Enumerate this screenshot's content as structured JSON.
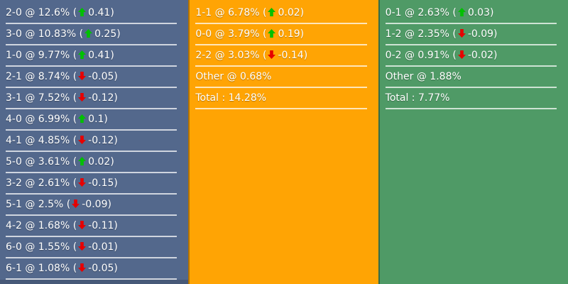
{
  "board": {
    "name": "correct-score-probability-board",
    "colors": {
      "home_bg": "#53688C",
      "draw_bg": "#FFA404",
      "away_bg": "#4F9A66",
      "trend_up": "#00C000",
      "trend_down": "#E60000",
      "separator": "rgba(255,255,255,0.72)",
      "text": "#FFFFFF"
    },
    "separator_word": "@",
    "total_separator_word": ":",
    "columns": [
      {
        "name": "home",
        "rows": [
          {
            "label": "2-0",
            "pct": "12.6%",
            "trend": "up",
            "delta": "0.41"
          },
          {
            "label": "3-0",
            "pct": "10.83%",
            "trend": "up",
            "delta": "0.25"
          },
          {
            "label": "1-0",
            "pct": "9.77%",
            "trend": "up",
            "delta": "0.41"
          },
          {
            "label": "2-1",
            "pct": "8.74%",
            "trend": "down",
            "delta": "-0.05"
          },
          {
            "label": "3-1",
            "pct": "7.52%",
            "trend": "down",
            "delta": "-0.12"
          },
          {
            "label": "4-0",
            "pct": "6.99%",
            "trend": "up",
            "delta": "0.1"
          },
          {
            "label": "4-1",
            "pct": "4.85%",
            "trend": "down",
            "delta": "-0.12"
          },
          {
            "label": "5-0",
            "pct": "3.61%",
            "trend": "up",
            "delta": "0.02"
          },
          {
            "label": "3-2",
            "pct": "2.61%",
            "trend": "down",
            "delta": "-0.15"
          },
          {
            "label": "5-1",
            "pct": "2.5%",
            "trend": "down",
            "delta": "-0.09"
          },
          {
            "label": "4-2",
            "pct": "1.68%",
            "trend": "down",
            "delta": "-0.11"
          },
          {
            "label": "6-0",
            "pct": "1.55%",
            "trend": "down",
            "delta": "-0.01"
          },
          {
            "label": "6-1",
            "pct": "1.08%",
            "trend": "down",
            "delta": "-0.05"
          }
        ],
        "has_partial_next_row": true
      },
      {
        "name": "draw",
        "rows": [
          {
            "label": "1-1",
            "pct": "6.78%",
            "trend": "up",
            "delta": "0.02"
          },
          {
            "label": "0-0",
            "pct": "3.79%",
            "trend": "up",
            "delta": "0.19"
          },
          {
            "label": "2-2",
            "pct": "3.03%",
            "trend": "down",
            "delta": "-0.14"
          },
          {
            "label": "Other",
            "pct": "0.68%"
          }
        ],
        "total_label": "Total",
        "total": "14.28%"
      },
      {
        "name": "away",
        "rows": [
          {
            "label": "0-1",
            "pct": "2.63%",
            "trend": "up",
            "delta": "0.03"
          },
          {
            "label": "1-2",
            "pct": "2.35%",
            "trend": "down",
            "delta": "-0.09"
          },
          {
            "label": "0-2",
            "pct": "0.91%",
            "trend": "down",
            "delta": "-0.02"
          },
          {
            "label": "Other",
            "pct": "1.88%"
          }
        ],
        "total_label": "Total",
        "total": "7.77%"
      }
    ]
  }
}
